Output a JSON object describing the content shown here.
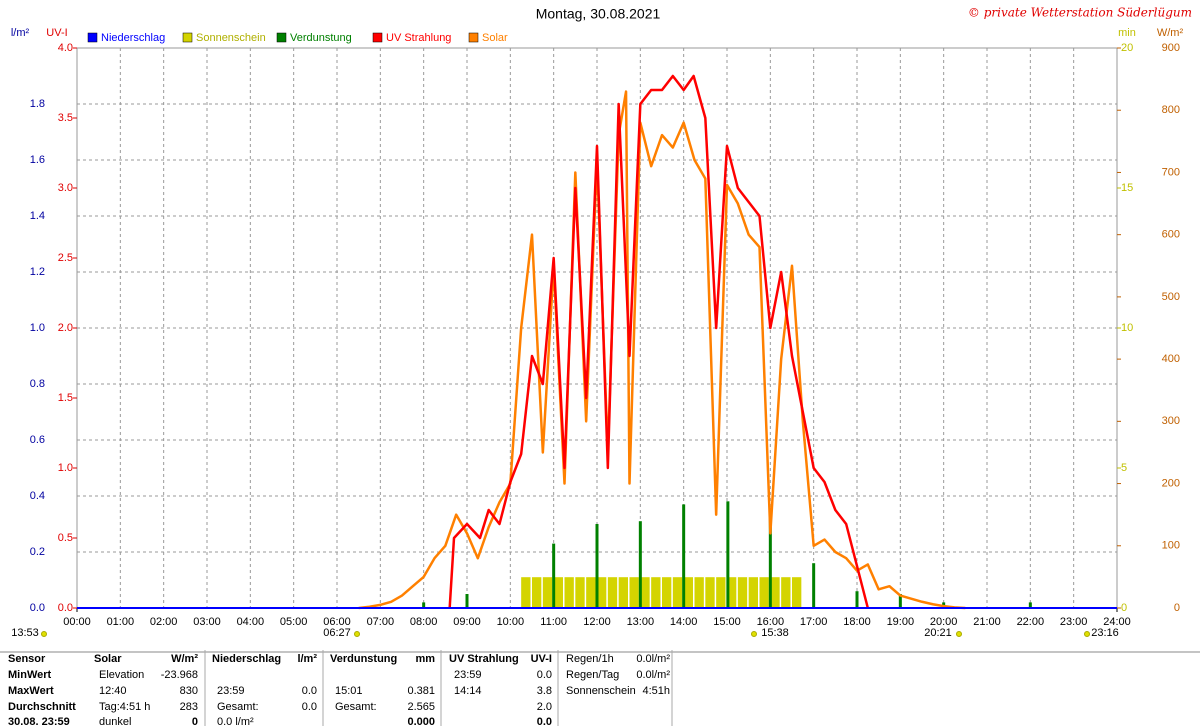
{
  "chart_data": {
    "type": "line",
    "title": "Montag, 30.08.2021",
    "copyright": "© private Wetterstation Süderlügum",
    "grid": true,
    "xlim": [
      0,
      24
    ],
    "xticks": [
      {
        "value": 0,
        "label": "00:00"
      },
      {
        "value": 1,
        "label": "01:00"
      },
      {
        "value": 2,
        "label": "02:00"
      },
      {
        "value": 3,
        "label": "03:00"
      },
      {
        "value": 4,
        "label": "04:00"
      },
      {
        "value": 5,
        "label": "05:00"
      },
      {
        "value": 6,
        "label": "06:00"
      },
      {
        "value": 7,
        "label": "07:00"
      },
      {
        "value": 8,
        "label": "08:00"
      },
      {
        "value": 9,
        "label": "09:00"
      },
      {
        "value": 10,
        "label": "10:00"
      },
      {
        "value": 11,
        "label": "11:00"
      },
      {
        "value": 12,
        "label": "12:00"
      },
      {
        "value": 13,
        "label": "13:00"
      },
      {
        "value": 14,
        "label": "14:00"
      },
      {
        "value": 15,
        "label": "15:00"
      },
      {
        "value": 16,
        "label": "16:00"
      },
      {
        "value": 17,
        "label": "17:00"
      },
      {
        "value": 18,
        "label": "18:00"
      },
      {
        "value": 19,
        "label": "19:00"
      },
      {
        "value": 20,
        "label": "20:00"
      },
      {
        "value": 21,
        "label": "21:00"
      },
      {
        "value": 22,
        "label": "22:00"
      },
      {
        "value": 23,
        "label": "23:00"
      },
      {
        "value": 24,
        "label": "24:00"
      }
    ],
    "axes": [
      {
        "label": "l/m²",
        "color": "#0000a0",
        "ylim": [
          0,
          2
        ],
        "yticks": [
          {
            "value": 0,
            "label": "0.0"
          },
          0.2,
          0.4,
          0.6,
          0.8,
          {
            "value": 1,
            "label": "1.0"
          },
          1.2,
          1.4,
          1.6,
          1.8
        ]
      },
      {
        "label": "UV-I",
        "color": "#e00000",
        "ylim": [
          0,
          4
        ],
        "yticks": [
          {
            "value": 0,
            "label": "0.0"
          },
          0.5,
          {
            "value": 1,
            "label": "1.0"
          },
          1.5,
          {
            "value": 2,
            "label": "2.0"
          },
          2.5,
          {
            "value": 3,
            "label": "3.0"
          },
          3.5,
          {
            "value": 4,
            "label": "4.0"
          }
        ]
      },
      {
        "label": "min",
        "color": "#c0c000",
        "ylim": [
          0,
          20
        ],
        "yticks": [
          0,
          5,
          10,
          15,
          20
        ]
      },
      {
        "label": "W/m²",
        "color": "#c06000",
        "ylim": [
          0,
          900
        ],
        "yticks": [
          0,
          100,
          200,
          300,
          400,
          500,
          600,
          700,
          800,
          900
        ]
      }
    ],
    "series": [
      {
        "name": "Niederschlag",
        "color": "#0000ff",
        "axis": 0,
        "type": "line",
        "x": [
          0,
          24
        ],
        "values": [
          0,
          0
        ]
      },
      {
        "name": "Sonnenschein",
        "color": "#d4d400",
        "axis": 2,
        "type": "bar",
        "x": [
          10.25,
          10.5,
          10.75,
          11,
          11.25,
          11.5,
          11.75,
          12,
          12.25,
          12.5,
          12.75,
          13,
          13.25,
          13.5,
          13.75,
          14,
          14.25,
          14.5,
          14.75,
          15,
          15.25,
          15.5,
          15.75,
          16,
          16.25,
          16.5
        ],
        "values": [
          1.1,
          1.1,
          1.1,
          1.1,
          1.1,
          1.1,
          1.1,
          1.1,
          1.1,
          1.1,
          1.1,
          1.1,
          1.1,
          1.1,
          1.1,
          1.1,
          1.1,
          1.1,
          1.1,
          1.1,
          1.1,
          1.1,
          1.1,
          1.1,
          1.1,
          1.1
        ]
      },
      {
        "name": "Verdunstung",
        "color": "#008000",
        "axis": 0,
        "type": "spike",
        "x": [
          8,
          9,
          11,
          12,
          13,
          14,
          15.02,
          16,
          17,
          18,
          19,
          20,
          22
        ],
        "values": [
          0.02,
          0.05,
          0.23,
          0.3,
          0.31,
          0.37,
          0.381,
          0.35,
          0.16,
          0.06,
          0.05,
          0.02,
          0.02
        ]
      },
      {
        "name": "UV Strahlung",
        "color": "#ff0000",
        "axis": 1,
        "type": "line",
        "x": [
          8.6,
          8.7,
          9,
          9.3,
          9.5,
          9.75,
          10,
          10.25,
          10.5,
          10.75,
          11,
          11.25,
          11.5,
          11.75,
          12,
          12.25,
          12.5,
          12.75,
          13,
          13.25,
          13.5,
          13.75,
          14,
          14.23,
          14.5,
          14.75,
          15,
          15.25,
          15.5,
          15.75,
          16,
          16.25,
          16.5,
          16.75,
          17,
          17.25,
          17.5,
          17.75,
          18,
          18.25
        ],
        "values": [
          0,
          0.5,
          0.6,
          0.5,
          0.7,
          0.6,
          0.9,
          1.1,
          1.8,
          1.6,
          2.5,
          1,
          3,
          1.5,
          3.3,
          1,
          3.6,
          1.8,
          3.6,
          3.7,
          3.7,
          3.8,
          3.7,
          3.8,
          3.5,
          2,
          3.3,
          3,
          2.9,
          2.8,
          2,
          2.4,
          1.8,
          1.4,
          1,
          0.9,
          0.7,
          0.6,
          0.3,
          0
        ]
      },
      {
        "name": "Solar",
        "color": "#ff8000",
        "axis": 3,
        "type": "line",
        "x": [
          6.5,
          6.75,
          7,
          7.25,
          7.5,
          7.75,
          8,
          8.25,
          8.5,
          8.75,
          9,
          9.25,
          9.5,
          9.75,
          10,
          10.25,
          10.5,
          10.75,
          11,
          11.25,
          11.5,
          11.75,
          12,
          12.25,
          12.5,
          12.67,
          12.75,
          13,
          13.25,
          13.5,
          13.75,
          14,
          14.25,
          14.5,
          14.75,
          15,
          15.25,
          15.5,
          15.75,
          16,
          16.25,
          16.5,
          16.75,
          17,
          17.25,
          17.5,
          17.75,
          18,
          18.25,
          18.5,
          18.75,
          19,
          19.25,
          19.5,
          19.75,
          20,
          20.25,
          20.5
        ],
        "values": [
          0,
          2,
          5,
          10,
          20,
          35,
          50,
          80,
          100,
          150,
          120,
          80,
          130,
          170,
          200,
          450,
          600,
          250,
          550,
          200,
          700,
          300,
          720,
          250,
          760,
          830,
          200,
          780,
          710,
          760,
          740,
          780,
          720,
          690,
          150,
          680,
          650,
          600,
          580,
          120,
          400,
          550,
          300,
          100,
          110,
          90,
          80,
          60,
          70,
          30,
          35,
          20,
          15,
          10,
          6,
          3,
          1,
          0
        ]
      }
    ],
    "annotations": [
      "13:53",
      "06:27",
      "20:21",
      "15:38",
      "23:16"
    ]
  },
  "table": {
    "row_labels": [
      "Sensor",
      "MinWert",
      "MaxWert",
      "Durchschnitt",
      "30.08. 23:59"
    ],
    "columns": [
      {
        "header": [
          "Solar",
          "W/m²"
        ],
        "rows": [
          [
            "Elevation",
            "-23.968"
          ],
          [
            "12:40",
            "830"
          ],
          [
            "Tag:4:51 h",
            "283"
          ],
          [
            "dunkel",
            "0"
          ]
        ]
      },
      {
        "header": [
          "Niederschlag",
          "l/m²"
        ],
        "rows": [
          [
            null,
            null
          ],
          [
            "23:59",
            "0.0"
          ],
          [
            "Gesamt:",
            "0.0"
          ],
          [
            "0.0 l/m²",
            null
          ]
        ]
      },
      {
        "header": [
          "Verdunstung",
          "mm"
        ],
        "rows": [
          [
            null,
            null
          ],
          [
            "15:01",
            "0.381"
          ],
          [
            "Gesamt:",
            "2.565"
          ],
          [
            null,
            "0.000"
          ]
        ]
      },
      {
        "header": [
          "UV Strahlung",
          "UV-I"
        ],
        "rows": [
          [
            "23:59",
            "0.0"
          ],
          [
            "14:14",
            "3.8"
          ],
          [
            null,
            "2.0"
          ],
          [
            null,
            "0.0"
          ]
        ]
      }
    ],
    "extra": [
      [
        "Regen/1h",
        "0.0l/m²"
      ],
      [
        "Regen/Tag",
        "0.0l/m²"
      ],
      [
        "Sonnenschein",
        "4:51h"
      ]
    ]
  }
}
